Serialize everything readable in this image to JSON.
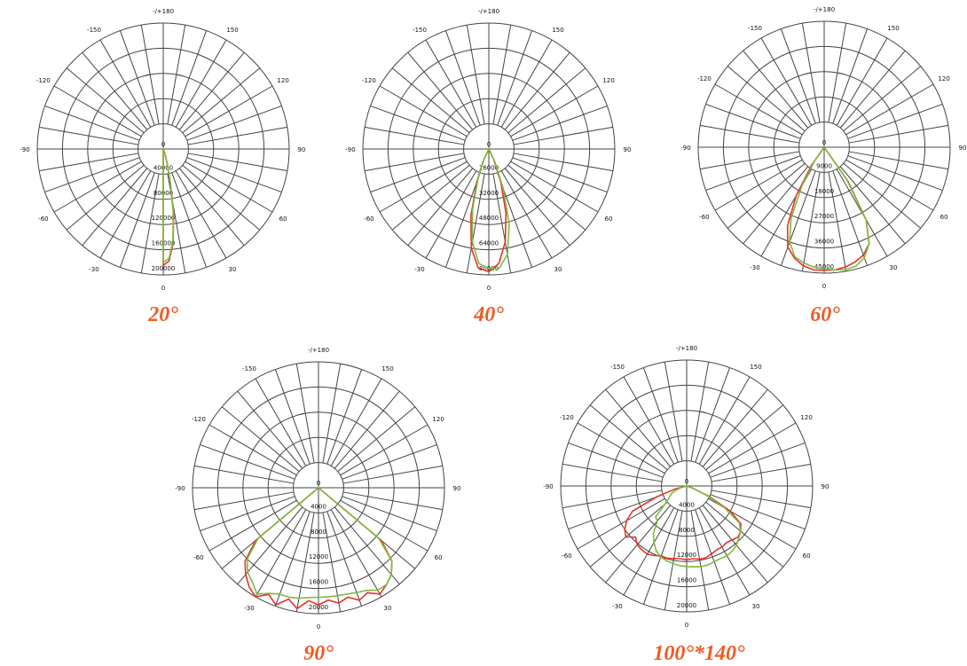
{
  "style": {
    "caption_color": "#f05a24",
    "c0_color": "#e8312a",
    "c90_color": "#7dbb3c",
    "grid_color": "#444444"
  },
  "angle_labels": [
    "-/+180",
    "150",
    "120",
    "90",
    "60",
    "30",
    "0",
    "-30",
    "-60",
    "-90",
    "-120",
    "-150"
  ],
  "chart_data": [
    {
      "type": "polar",
      "title": "20°",
      "rmax": 200000,
      "radial_ticks": [
        "0",
        "40000",
        "80000",
        "120000",
        "160000",
        "200000"
      ],
      "angles_deg": [
        0,
        3,
        6,
        9,
        12,
        15,
        20,
        30
      ],
      "series": [
        {
          "color": "#e8312a",
          "values": [
            185000,
            178000,
            150000,
            105000,
            55000,
            25000,
            8000,
            0
          ]
        },
        {
          "color": "#7dbb3c",
          "values": [
            180000,
            174000,
            147000,
            103000,
            53000,
            24000,
            8000,
            0
          ]
        }
      ]
    },
    {
      "type": "polar",
      "title": "40°",
      "rmax": 80000,
      "radial_ticks": [
        "0",
        "16000",
        "32000",
        "48000",
        "64000",
        "80000"
      ],
      "angles_deg": [
        -30,
        -25,
        -20,
        -15,
        -10,
        -5,
        0,
        5,
        10,
        15,
        20,
        25,
        30
      ],
      "series": [
        {
          "color": "#e8312a",
          "values": [
            0,
            8000,
            22000,
            44000,
            64000,
            76000,
            78000,
            73000,
            60000,
            42000,
            22000,
            7000,
            0
          ]
        },
        {
          "color": "#7dbb3c",
          "values": [
            0,
            7000,
            20000,
            40000,
            60000,
            73000,
            76000,
            76000,
            68000,
            50000,
            27000,
            9000,
            0
          ]
        }
      ]
    },
    {
      "type": "polar",
      "title": "60°",
      "rmax": 45000,
      "radial_ticks": [
        "0",
        "9000",
        "18000",
        "27000",
        "36000",
        "45000"
      ],
      "angles_deg": [
        -40,
        -35,
        -30,
        -25,
        -20,
        -15,
        -10,
        -5,
        0,
        5,
        10,
        15,
        20,
        25,
        30,
        35,
        40
      ],
      "series": [
        {
          "color": "#e8312a",
          "values": [
            0,
            8000,
            20000,
            31000,
            38000,
            41000,
            43000,
            44000,
            44000,
            44000,
            43500,
            42500,
            41000,
            38000,
            30000,
            15000,
            0
          ]
        },
        {
          "color": "#7dbb3c",
          "values": [
            0,
            6000,
            16000,
            28000,
            36000,
            40500,
            42000,
            43000,
            43500,
            44000,
            44500,
            44000,
            42000,
            38000,
            30000,
            14000,
            0
          ]
        }
      ]
    },
    {
      "type": "polar",
      "title": "90°",
      "rmax": 20000,
      "radial_ticks": [
        "0",
        "4000",
        "8000",
        "12000",
        "16000",
        "20000"
      ],
      "angles_deg": [
        -55,
        -50,
        -45,
        -40,
        -35,
        -30,
        -25,
        -20,
        -15,
        -10,
        -5,
        0,
        5,
        10,
        15,
        20,
        25,
        30,
        35,
        40,
        45,
        50,
        55
      ],
      "series": [
        {
          "color": "#e8312a",
          "values": [
            0,
            13000,
            16500,
            18000,
            19200,
            21500,
            18700,
            19800,
            18300,
            19500,
            18000,
            18600,
            17900,
            18600,
            18000,
            19000,
            18400,
            19500,
            18800,
            18000,
            16500,
            13000,
            0
          ]
        },
        {
          "color": "#7dbb3c",
          "values": [
            0,
            12500,
            16000,
            17500,
            18300,
            19500,
            18500,
            18000,
            18000,
            17800,
            17500,
            17400,
            17400,
            17400,
            17500,
            17700,
            18000,
            18800,
            18800,
            18000,
            16500,
            12500,
            0
          ]
        }
      ]
    },
    {
      "type": "polar",
      "title": "100°*140°",
      "rmax": 20000,
      "radial_ticks": [
        "0",
        "4000",
        "8000",
        "12000",
        "16000",
        "20000"
      ],
      "angles_deg": [
        -80,
        -75,
        -70,
        -65,
        -60,
        -55,
        -50,
        -45,
        -40,
        -35,
        -30,
        -25,
        -20,
        -15,
        -10,
        -5,
        0,
        5,
        10,
        15,
        20,
        25,
        30,
        35,
        40,
        45,
        50,
        55,
        60,
        65,
        70,
        75
      ],
      "series": [
        {
          "color": "#e8312a",
          "values": [
            0,
            2000,
            5000,
            9500,
            11000,
            12000,
            12600,
            11500,
            12200,
            12400,
            12500,
            12200,
            11800,
            11900,
            11700,
            11600,
            11700,
            11600,
            11800,
            11800,
            11500,
            11200,
            11200,
            11000,
            11200,
            11500,
            11200,
            10500,
            8000,
            4000,
            1000,
            0
          ]
        },
        {
          "color": "#7dbb3c",
          "values": [
            0,
            800,
            1500,
            2500,
            3000,
            3500,
            4500,
            7000,
            7200,
            9200,
            10400,
            11400,
            12000,
            12300,
            12500,
            12700,
            12800,
            12900,
            13000,
            13000,
            12800,
            12700,
            12800,
            12600,
            12300,
            11700,
            11200,
            10200,
            7000,
            3500,
            1200,
            0
          ]
        }
      ]
    }
  ]
}
